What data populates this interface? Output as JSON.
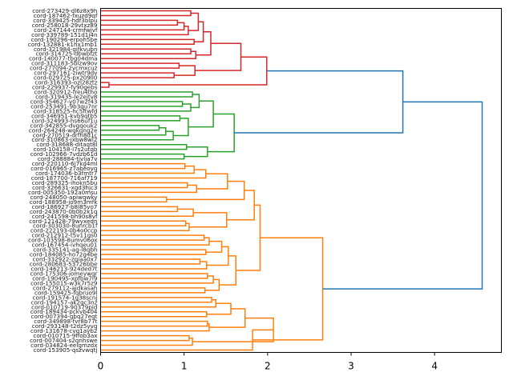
{
  "chart_data": {
    "type": "dendrogram",
    "orientation": "left",
    "title": "",
    "xlabel": "",
    "ylabel": "",
    "xlim": [
      0,
      4.8
    ],
    "x_ticks": [
      0,
      1,
      2,
      3,
      4
    ],
    "x_tick_labels": [
      "0",
      "1",
      "2",
      "3",
      "4"
    ],
    "grid": false,
    "colors": {
      "cluster_red": "#d62728",
      "cluster_green": "#2ca02c",
      "cluster_orange": "#ff7f0e",
      "above_threshold": "#1f77b4"
    },
    "leaves": [
      "cord-273429-dl6z8x9h",
      "cord-187462-fxuzd9qf",
      "cord-339425-hdf3blpu",
      "cord-258018-29vtxz89",
      "cord-247144-crmfwjvf",
      "cord-339789-151d1j4n",
      "cord-190296-erpoh5be",
      "cord-132881-k1hx1mb1",
      "cord-321984-gifkvubn",
      "cord-314725-dbwbfzt",
      "cord-140077-tbg04dma",
      "cord-311183-5blzw9ov",
      "cord-277094-2ycmxcuz",
      "cord-297161-ziwtr9dv",
      "cord-029725-px209ll0",
      "cord-316393-ozl28ztz",
      "cord-229937-fy90gebs",
      "cord-320912-freu4tho",
      "cord-319435-le2ejtv8",
      "cord-354627-y07w2f43",
      "cord-253491-9b3qu7nr",
      "cord-318525-hc5ftwfd",
      "cord-346951-kvb9qtb5",
      "cord-324993-hs66uf1u",
      "cord-342855-dvgqouk2",
      "cord-264248-wqkqng2e",
      "cord-270519-drfh8d1c",
      "cord-310863-jxbw8wl2",
      "cord-318688-ditaqt8l",
      "cord-104158-l7s2utqb",
      "cord-102966-7vdzb61d",
      "cord-288884-tjvlja7v",
      "cord-220110-6j7kg4ml",
      "cord-016965-z7abeoyq",
      "cord-174036-b3fmtr7",
      "cord-187700-716af719",
      "cord-289325-ihokn5bu",
      "cord-326631-xgd3hjc3",
      "cord-005350-192a0msu",
      "cord-248050-apiwqwky",
      "cord-188958-jo9m3mfk",
      "cord-186927-b8l85vo7",
      "cord-243870-0b0b2k1q",
      "cord-241598-bh90s8vf",
      "cord-121428-79wyxedn",
      "cord-303030-8unrcb1f",
      "cord-222193-0b4o0ccp",
      "cord-212912-t5v11gs0",
      "cord-103598-8umv06ox",
      "cord-167454-ivhqeu01",
      "cord-335141-ag-l8qbh",
      "cord-184085-ho72g4be",
      "cord-332922-zgiaa0x7",
      "cord-280683-53726bbe",
      "cord-146213-924ded7t",
      "cord-175306-jomeywqr",
      "cord-190495-xpfbw7l9",
      "cord-155015-w3k7r5z9",
      "cord-279112-ajdkasah",
      "cord-159425-fqbruo9l",
      "cord-191574-1g38scnj",
      "cord-194157-ak2gc3nz",
      "cord-010719-90379pid",
      "cord-189434-pckvb404",
      "cord-007394-gbq27eqt",
      "cord-349898-fvr8b77t",
      "cord-293148-t2dz5yvq",
      "cord-131678-cvq1ayb2",
      "cord-010715-9ffob3ax",
      "cord-007404-s2qnhswe",
      "cord-034824-eelgmzdx",
      "cord-153905-qszvwqtj"
    ],
    "merges": [
      {
        "a": 0,
        "b": 1,
        "h": 1.08
      },
      {
        "a": 2,
        "b": 3,
        "h": 0.92
      },
      {
        "a": "m1",
        "b": 4,
        "h": 1.0
      },
      {
        "a": "m2",
        "b": 5,
        "h": 1.05
      },
      {
        "a": "m0",
        "b": "m3",
        "h": 1.17
      },
      {
        "a": 6,
        "b": 7,
        "h": 1.12
      },
      {
        "a": "m4",
        "b": "m5",
        "h": 1.23
      },
      {
        "a": 8,
        "b": 9,
        "h": 1.08
      },
      {
        "a": "m7",
        "b": 10,
        "h": 1.14
      },
      {
        "a": "m6",
        "b": "m8",
        "h": 1.32
      },
      {
        "a": 11,
        "b": 12,
        "h": 0.94
      },
      {
        "a": 13,
        "b": 14,
        "h": 0.88
      },
      {
        "a": "m10",
        "b": "m11",
        "h": 1.13
      },
      {
        "a": "m9",
        "b": "m12",
        "h": 1.68
      },
      {
        "a": 15,
        "b": 16,
        "h": 0.1
      },
      {
        "a": "m13",
        "b": "m14",
        "h": 1.99
      },
      {
        "a": 17,
        "b": 18,
        "h": 1.1
      },
      {
        "a": 19,
        "b": 20,
        "h": 0.98
      },
      {
        "a": "m17",
        "b": 21,
        "h": 1.08
      },
      {
        "a": "m16",
        "b": "m18",
        "h": 1.18
      },
      {
        "a": 22,
        "b": 23,
        "h": 0.95
      },
      {
        "a": 24,
        "b": 25,
        "h": 0.7
      },
      {
        "a": "m21",
        "b": 26,
        "h": 0.78
      },
      {
        "a": "m22",
        "b": 27,
        "h": 0.87
      },
      {
        "a": "m20",
        "b": "m23",
        "h": 1.05
      },
      {
        "a": "m19",
        "b": "m24",
        "h": 1.35
      },
      {
        "a": 28,
        "b": 29,
        "h": 1.03
      },
      {
        "a": 30,
        "b": 31,
        "h": 1.0
      },
      {
        "a": "m26",
        "b": "m27",
        "h": 1.28
      },
      {
        "a": "m25",
        "b": "m28",
        "h": 1.6
      },
      {
        "a": "m15",
        "b": "m29",
        "h": 3.62
      },
      {
        "a": 32,
        "b": 33,
        "h": 1.01
      },
      {
        "a": "m31",
        "b": 34,
        "h": 1.12
      },
      {
        "a": "m32",
        "b": 35,
        "h": 1.26
      },
      {
        "a": 36,
        "b": 37,
        "h": 1.04
      },
      {
        "a": "m34",
        "b": 38,
        "h": 1.15
      },
      {
        "a": "m33",
        "b": "m35",
        "h": 1.52
      },
      {
        "a": 39,
        "b": 40,
        "h": 0.79
      },
      {
        "a": "m36",
        "b": "m37",
        "h": 1.72
      },
      {
        "a": 41,
        "b": 42,
        "h": 0.92
      },
      {
        "a": "m39",
        "b": 43,
        "h": 1.11
      },
      {
        "a": 44,
        "b": 45,
        "h": 1.02
      },
      {
        "a": "m41",
        "b": 46,
        "h": 1.06
      },
      {
        "a": "m40",
        "b": "m42",
        "h": 1.51
      },
      {
        "a": "m38",
        "b": "m43",
        "h": 1.84
      },
      {
        "a": 47,
        "b": 48,
        "h": 1.24
      },
      {
        "a": "m45",
        "b": 49,
        "h": 1.3
      },
      {
        "a": 50,
        "b": 51,
        "h": 1.26
      },
      {
        "a": "m46",
        "b": "m47",
        "h": 1.45
      },
      {
        "a": 52,
        "b": 53,
        "h": 1.19
      },
      {
        "a": "m49",
        "b": 54,
        "h": 1.27
      },
      {
        "a": "m48",
        "b": "m50",
        "h": 1.53
      },
      {
        "a": 55,
        "b": 56,
        "h": 1.28
      },
      {
        "a": "m52",
        "b": 57,
        "h": 1.35
      },
      {
        "a": 58,
        "b": 59,
        "h": 1.25
      },
      {
        "a": "m53",
        "b": "m54",
        "h": 1.42
      },
      {
        "a": "m51",
        "b": "m55",
        "h": 1.62
      },
      {
        "a": "m44",
        "b": "m56",
        "h": 1.91
      },
      {
        "a": 60,
        "b": 61,
        "h": 1.33
      },
      {
        "a": "m58",
        "b": 62,
        "h": 1.38
      },
      {
        "a": 63,
        "b": 64,
        "h": 1.27
      },
      {
        "a": "m59",
        "b": "m60",
        "h": 1.56
      },
      {
        "a": 65,
        "b": 66,
        "h": 1.28
      },
      {
        "a": "m62",
        "b": 67,
        "h": 1.3
      },
      {
        "a": "m61",
        "b": "m63",
        "h": 1.73
      },
      {
        "a": 68,
        "b": 69,
        "h": 1.06
      },
      {
        "a": "m65",
        "b": 70,
        "h": 1.1
      },
      {
        "a": "m64",
        "b": "m66",
        "h": 2.07
      },
      {
        "a": "m67",
        "b": 71,
        "h": 1.82
      },
      {
        "a": "m57",
        "b": "m68",
        "h": 2.66
      },
      {
        "a": "m30",
        "b": "m69",
        "h": 4.57
      }
    ],
    "cluster_spans": [
      {
        "color": "cluster_red",
        "leaf_start": 0,
        "leaf_end": 16
      },
      {
        "color": "cluster_green",
        "leaf_start": 17,
        "leaf_end": 31
      },
      {
        "color": "cluster_orange",
        "leaf_start": 32,
        "leaf_end": 71
      }
    ],
    "color_threshold": 3.0
  }
}
